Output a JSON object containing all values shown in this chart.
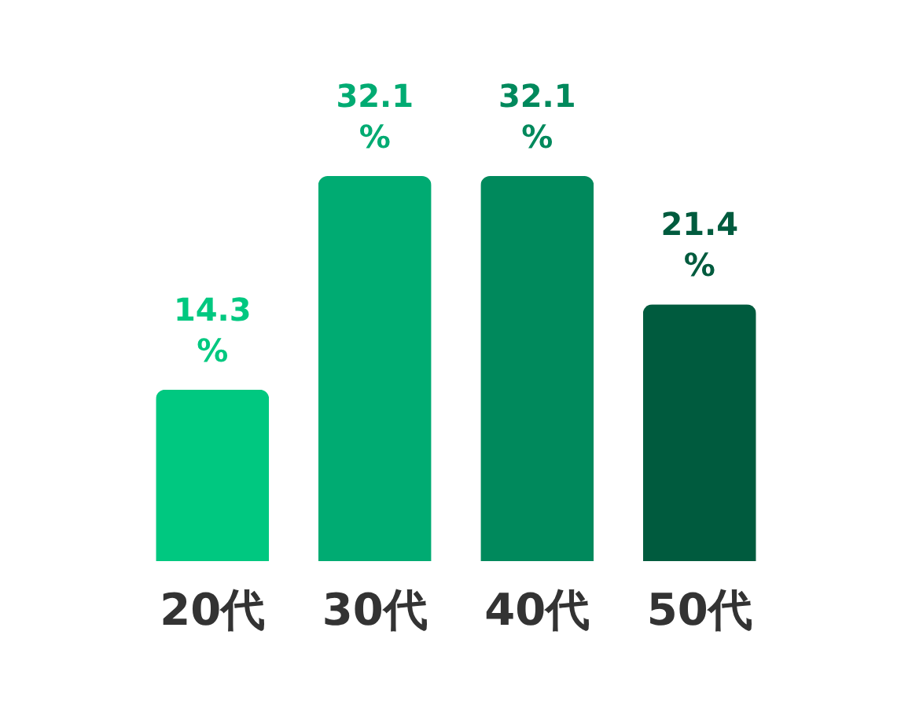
{
  "chart_data": {
    "type": "bar",
    "categories": [
      "20代",
      "30代",
      "40代",
      "50代"
    ],
    "values": [
      14.3,
      32.1,
      32.1,
      21.4
    ],
    "colors": [
      "#00c880",
      "#00ab72",
      "#00895c",
      "#005b3e"
    ],
    "value_labels": [
      "14.3 %",
      "32.1 %",
      "32.1 %",
      "21.4 %"
    ],
    "grid": false,
    "legend": false
  }
}
